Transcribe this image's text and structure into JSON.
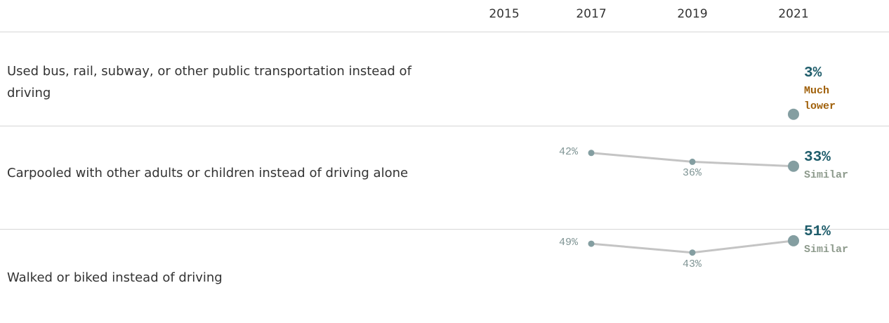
{
  "years": [
    "2015",
    "2017",
    "2019",
    "2021"
  ],
  "rows": [
    {
      "label": "Used bus, rail, subway, or other public transportation instead of driving",
      "values": [
        null,
        null,
        null,
        3
      ],
      "value_labels": [
        null,
        null,
        null,
        "3%"
      ],
      "comparison": "Much lower",
      "comparison_color": "#a0600a"
    },
    {
      "label": "Carpooled with other adults or children instead of driving alone",
      "values": [
        null,
        42,
        36,
        33
      ],
      "value_labels": [
        null,
        "42%",
        "36%",
        "33%"
      ],
      "comparison": "Similar",
      "comparison_color": "#8d9a8c"
    },
    {
      "label": "Walked or biked instead of driving",
      "values": [
        null,
        49,
        43,
        51
      ],
      "value_labels": [
        null,
        "49%",
        "43%",
        "51%"
      ],
      "comparison": "Similar",
      "comparison_color": "#8d9a8c"
    }
  ]
}
